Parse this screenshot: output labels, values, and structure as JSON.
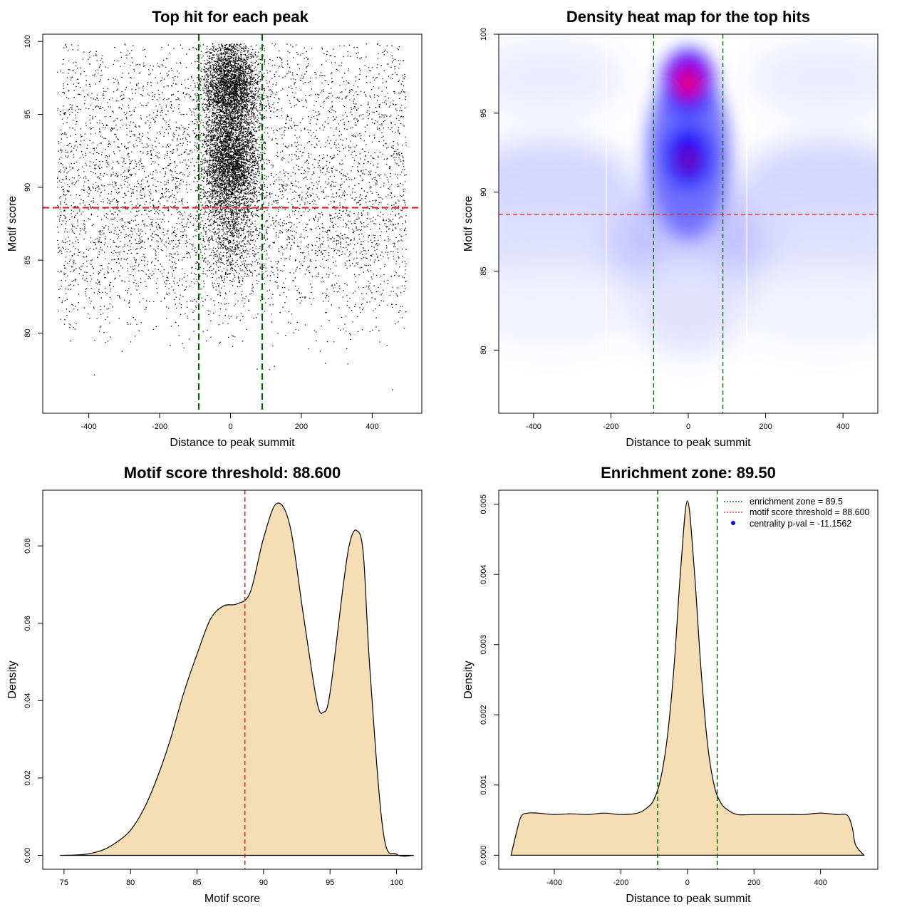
{
  "chart_data": [
    {
      "id": "p1",
      "type": "scatter",
      "title": "Top hit for each peak",
      "xlabel": "Distance to peak summit",
      "ylabel": "Motif score",
      "xlim": [
        -530,
        540
      ],
      "ylim": [
        74.5,
        100.5
      ],
      "xticks": [
        -400,
        -200,
        0,
        200,
        400
      ],
      "yticks": [
        80,
        85,
        90,
        95,
        100
      ],
      "x_range": [
        -490,
        495
      ],
      "central_x_range": [
        -90,
        90
      ],
      "score_bands": [
        {
          "y": 97,
          "weight": 1.0
        },
        {
          "y": 92,
          "weight": 1.2
        },
        {
          "y": 87.5,
          "weight": 1.4
        },
        {
          "y": 84,
          "weight": 0.6
        }
      ],
      "vlines": [
        {
          "x": -89.5,
          "color": "#006400"
        },
        {
          "x": 89.5,
          "color": "#006400"
        }
      ],
      "hlines": [
        {
          "y": 88.6,
          "color": "#dd2222"
        }
      ]
    },
    {
      "id": "p2",
      "type": "heatmap",
      "title": "Density heat map for the top hits",
      "xlabel": "Distance to peak summit",
      "ylabel": "Motif score",
      "xlim": [
        -490,
        490
      ],
      "ylim": [
        76,
        100
      ],
      "xticks": [
        -400,
        -200,
        0,
        200,
        400
      ],
      "yticks": [
        80,
        85,
        90,
        95,
        100
      ],
      "hotspots": [
        {
          "x": 0,
          "y": 97,
          "level": "high",
          "color": "#ff0000"
        },
        {
          "x": 0,
          "y": 92,
          "level": "medium",
          "color": "#0000ff"
        }
      ],
      "vlines": [
        {
          "x": -89.5,
          "color": "#006400"
        },
        {
          "x": 89.5,
          "color": "#006400"
        }
      ],
      "hlines": [
        {
          "y": 88.6,
          "color": "#dd2222"
        }
      ]
    },
    {
      "id": "p3",
      "type": "area",
      "title": "Motif score threshold: 88.600",
      "xlabel": "Motif score",
      "ylabel": "Density",
      "fill": "#f5deb3",
      "xlim": [
        73.4,
        101.9
      ],
      "ylim": [
        -0.0036,
        0.0944
      ],
      "xticks": [
        75,
        80,
        85,
        90,
        95,
        100
      ],
      "yticks": [
        0.0,
        0.02,
        0.04,
        0.06,
        0.08
      ],
      "ytick_labels": [
        "0.00",
        "0.02",
        "0.04",
        "0.06",
        "0.08"
      ],
      "x": [
        74.7,
        76,
        77,
        78,
        79,
        80,
        81,
        82,
        83,
        84,
        85,
        86,
        87,
        88,
        89,
        90,
        91,
        92,
        93,
        94,
        94.5,
        95,
        96,
        96.5,
        97,
        97.5,
        98,
        99,
        100,
        101.3
      ],
      "y": [
        0,
        0.0001,
        0.0005,
        0.0015,
        0.0035,
        0.0065,
        0.012,
        0.02,
        0.03,
        0.042,
        0.052,
        0.061,
        0.0645,
        0.065,
        0.068,
        0.082,
        0.091,
        0.085,
        0.062,
        0.04,
        0.037,
        0.042,
        0.07,
        0.081,
        0.084,
        0.078,
        0.048,
        0.006,
        0.0003,
        0
      ],
      "vlines": [
        {
          "x": 88.6,
          "color": "#dd2222"
        }
      ]
    },
    {
      "id": "p4",
      "type": "area",
      "title": "Enrichment zone: 89.50",
      "xlabel": "Distance to peak summit",
      "ylabel": "Density",
      "fill": "#f5deb3",
      "xlim": [
        -567,
        572
      ],
      "ylim": [
        -0.0002,
        0.0052
      ],
      "xticks": [
        -400,
        -200,
        0,
        200,
        400
      ],
      "yticks": [
        0,
        0.001,
        0.002,
        0.003,
        0.004,
        0.005
      ],
      "ytick_labels": [
        "0.000",
        "0.001",
        "0.002",
        "0.003",
        "0.004",
        "0.005"
      ],
      "x": [
        -530,
        -515,
        -500,
        -480,
        -450,
        -400,
        -350,
        -300,
        -250,
        -200,
        -150,
        -120,
        -100,
        -80,
        -60,
        -40,
        -20,
        0,
        20,
        40,
        60,
        80,
        100,
        120,
        150,
        200,
        250,
        300,
        350,
        400,
        450,
        480,
        495,
        505,
        530
      ],
      "y": [
        0,
        0.0003,
        0.00055,
        0.0006,
        0.0006,
        0.00058,
        0.00059,
        0.00058,
        0.0006,
        0.00058,
        0.0006,
        0.00068,
        0.0008,
        0.0011,
        0.0017,
        0.0027,
        0.0041,
        0.00505,
        0.0041,
        0.0027,
        0.0016,
        0.001,
        0.00075,
        0.00065,
        0.00058,
        0.00058,
        0.00058,
        0.00058,
        0.00058,
        0.0006,
        0.00058,
        0.00057,
        0.0004,
        0.00015,
        0
      ],
      "vlines": [
        {
          "x": -89.5,
          "color": "#006400"
        },
        {
          "x": 89.5,
          "color": "#006400"
        }
      ],
      "legend": {
        "position": "top-right",
        "items": [
          {
            "label": "enrichment zone = 89.5",
            "style": "dotted-line",
            "color": "#006400"
          },
          {
            "label": "motif score threshold = 88.600",
            "style": "dotted-line",
            "color": "#dd2222"
          },
          {
            "label": "centrality p-val = -11.1562",
            "style": "point",
            "color": "#0000ff"
          }
        ]
      }
    }
  ]
}
